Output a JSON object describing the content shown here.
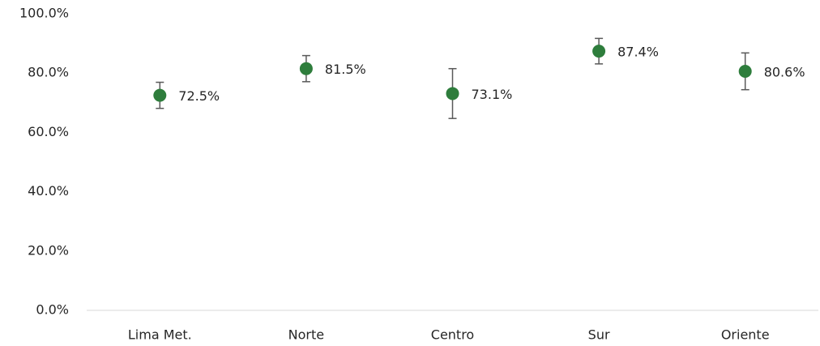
{
  "chart_data": {
    "type": "errorbar-dot",
    "categories": [
      "Lima Met.",
      "Norte",
      "Centro",
      "Sur",
      "Oriente"
    ],
    "values": [
      72.5,
      81.5,
      73.1,
      87.4,
      80.6
    ],
    "value_labels": [
      "72.5%",
      "81.5%",
      "73.1%",
      "87.4%",
      "80.6%"
    ],
    "errors": [
      4.4,
      4.4,
      8.4,
      4.3,
      6.2
    ],
    "color": "#2e7d3c",
    "error_color": "#595959",
    "ylim": [
      0,
      100
    ],
    "yticks": [
      {
        "value": 0,
        "label": "0.0%"
      },
      {
        "value": 20,
        "label": "20.0%"
      },
      {
        "value": 40,
        "label": "40.0%"
      },
      {
        "value": 60,
        "label": "60.0%"
      },
      {
        "value": 80,
        "label": "80.0%"
      },
      {
        "value": 100,
        "label": "100.0%"
      }
    ],
    "grid": false
  }
}
